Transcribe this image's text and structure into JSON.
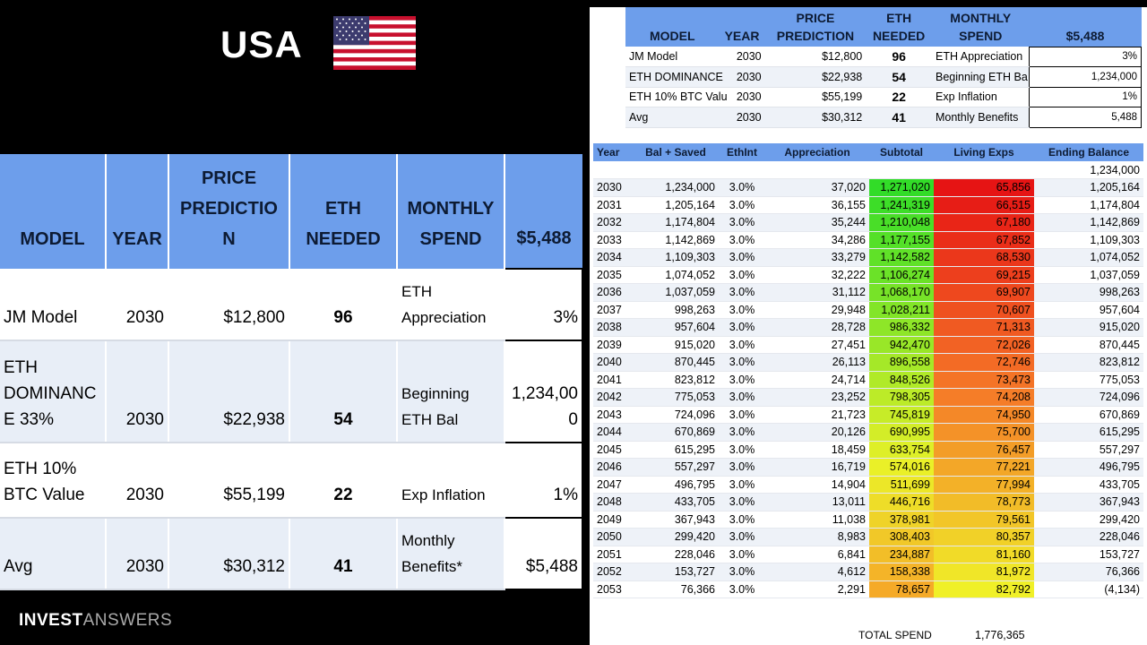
{
  "header": {
    "title": "USA"
  },
  "summary": {
    "columns": [
      "MODEL",
      "YEAR",
      "PRICE PREDICTIO N",
      "ETH NEEDED",
      "MONTHLY SPEND",
      "$5,488"
    ],
    "rows": [
      {
        "model": "JM Model",
        "year": "2030",
        "price": "$12,800",
        "eth": "96",
        "param_label": "ETH Appreciation",
        "param_value": "3%"
      },
      {
        "model": "ETH DOMINANC E 33%",
        "year": "2030",
        "price": "$22,938",
        "eth": "54",
        "param_label": "Beginning ETH Bal",
        "param_value": "1,234,00 0"
      },
      {
        "model": "ETH 10% BTC Value",
        "year": "2030",
        "price": "$55,199",
        "eth": "22",
        "param_label": "Exp Inflation",
        "param_value": "1%"
      },
      {
        "model": "Avg",
        "year": "2030",
        "price": "$30,312",
        "eth": "41",
        "param_label": "Monthly Benefits*",
        "param_value": "$5,488"
      }
    ]
  },
  "sheet": {
    "summary_columns": [
      "MODEL",
      "YEAR",
      "PRICE PREDICTION",
      "ETH NEEDED",
      "MONTHLY SPEND",
      "$5,488"
    ],
    "summary_rows": [
      {
        "model": "JM Model",
        "year": "2030",
        "price": "$12,800",
        "eth": "96",
        "param_label": "ETH Appreciation",
        "param_value": "3%"
      },
      {
        "model": "ETH DOMINANCE",
        "year": "2030",
        "price": "$22,938",
        "eth": "54",
        "param_label": "Beginning ETH Ba",
        "param_value": "1,234,000"
      },
      {
        "model": "ETH 10% BTC Valu",
        "year": "2030",
        "price": "$55,199",
        "eth": "22",
        "param_label": "Exp Inflation",
        "param_value": "1%"
      },
      {
        "model": "Avg",
        "year": "2030",
        "price": "$30,312",
        "eth": "41",
        "param_label": "Monthly Benefits",
        "param_value": "5,488"
      }
    ],
    "projection_columns": [
      "Year",
      "Bal + Saved",
      "EthInt",
      "Appreciation",
      "Subtotal",
      "Living Exps",
      "Ending Balance"
    ],
    "opening_balance": "1,234,000",
    "projection_rows": [
      [
        "2030",
        "1,234,000",
        "3.0%",
        "37,020",
        "1,271,020",
        "65,856",
        "1,205,164"
      ],
      [
        "2031",
        "1,205,164",
        "3.0%",
        "36,155",
        "1,241,319",
        "66,515",
        "1,174,804"
      ],
      [
        "2032",
        "1,174,804",
        "3.0%",
        "35,244",
        "1,210,048",
        "67,180",
        "1,142,869"
      ],
      [
        "2033",
        "1,142,869",
        "3.0%",
        "34,286",
        "1,177,155",
        "67,852",
        "1,109,303"
      ],
      [
        "2034",
        "1,109,303",
        "3.0%",
        "33,279",
        "1,142,582",
        "68,530",
        "1,074,052"
      ],
      [
        "2035",
        "1,074,052",
        "3.0%",
        "32,222",
        "1,106,274",
        "69,215",
        "1,037,059"
      ],
      [
        "2036",
        "1,037,059",
        "3.0%",
        "31,112",
        "1,068,170",
        "69,907",
        "998,263"
      ],
      [
        "2037",
        "998,263",
        "3.0%",
        "29,948",
        "1,028,211",
        "70,607",
        "957,604"
      ],
      [
        "2038",
        "957,604",
        "3.0%",
        "28,728",
        "986,332",
        "71,313",
        "915,020"
      ],
      [
        "2039",
        "915,020",
        "3.0%",
        "27,451",
        "942,470",
        "72,026",
        "870,445"
      ],
      [
        "2040",
        "870,445",
        "3.0%",
        "26,113",
        "896,558",
        "72,746",
        "823,812"
      ],
      [
        "2041",
        "823,812",
        "3.0%",
        "24,714",
        "848,526",
        "73,473",
        "775,053"
      ],
      [
        "2042",
        "775,053",
        "3.0%",
        "23,252",
        "798,305",
        "74,208",
        "724,096"
      ],
      [
        "2043",
        "724,096",
        "3.0%",
        "21,723",
        "745,819",
        "74,950",
        "670,869"
      ],
      [
        "2044",
        "670,869",
        "3.0%",
        "20,126",
        "690,995",
        "75,700",
        "615,295"
      ],
      [
        "2045",
        "615,295",
        "3.0%",
        "18,459",
        "633,754",
        "76,457",
        "557,297"
      ],
      [
        "2046",
        "557,297",
        "3.0%",
        "16,719",
        "574,016",
        "77,221",
        "496,795"
      ],
      [
        "2047",
        "496,795",
        "3.0%",
        "14,904",
        "511,699",
        "77,994",
        "433,705"
      ],
      [
        "2048",
        "433,705",
        "3.0%",
        "13,011",
        "446,716",
        "78,773",
        "367,943"
      ],
      [
        "2049",
        "367,943",
        "3.0%",
        "11,038",
        "378,981",
        "79,561",
        "299,420"
      ],
      [
        "2050",
        "299,420",
        "3.0%",
        "8,983",
        "308,403",
        "80,357",
        "228,046"
      ],
      [
        "2051",
        "228,046",
        "3.0%",
        "6,841",
        "234,887",
        "81,160",
        "153,727"
      ],
      [
        "2052",
        "153,727",
        "3.0%",
        "4,612",
        "158,338",
        "81,972",
        "76,366"
      ],
      [
        "2053",
        "76,366",
        "3.0%",
        "2,291",
        "78,657",
        "82,792",
        "(4,134)"
      ]
    ],
    "total_label": "TOTAL SPEND",
    "total_value": "1,776,365"
  },
  "logo": {
    "part1": "INVEST",
    "part2": "ANSWERS"
  }
}
